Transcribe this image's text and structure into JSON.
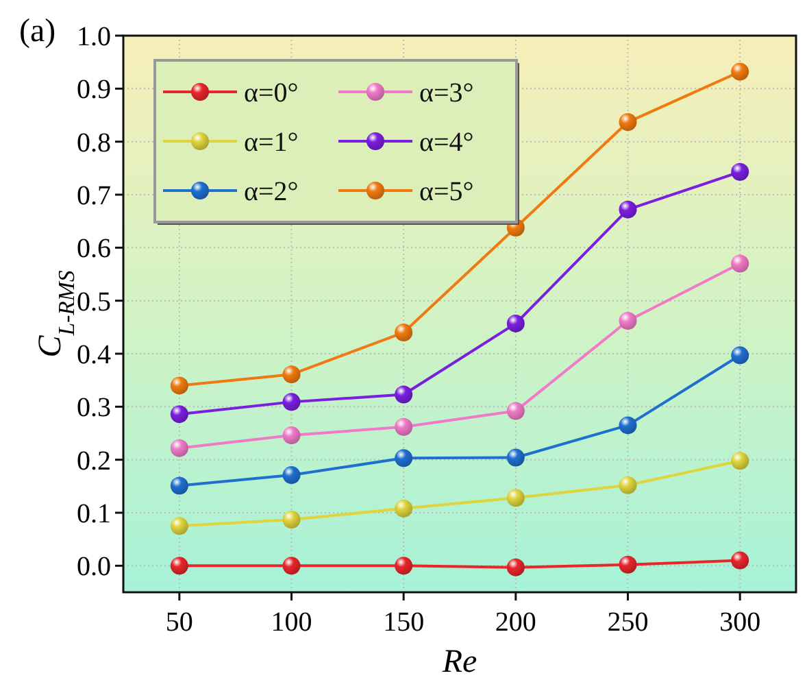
{
  "chart_data": {
    "type": "line",
    "title": "(a)",
    "xlabel": "Re",
    "ylabel": "C$_{L-RMS}$",
    "x": [
      50,
      100,
      150,
      200,
      250,
      300
    ],
    "xlim": [
      25,
      325
    ],
    "xticks": [
      50,
      100,
      150,
      200,
      250,
      300
    ],
    "ylim": [
      -0.05,
      1.0
    ],
    "yticks": [
      {
        "value": 0,
        "label": "0.0"
      },
      0.1,
      0.2,
      0.3,
      0.4,
      0.5,
      0.6,
      0.7,
      0.8,
      0.9,
      {
        "value": 1,
        "label": "1.0"
      }
    ],
    "grid": true,
    "legend": "top left",
    "marker": "circle",
    "line_style": "solid",
    "series": [
      {
        "name": "α=0°",
        "color": "#e8262b",
        "values": [
          0,
          0,
          0,
          -0.003,
          0.002,
          0.01
        ]
      },
      {
        "name": "α=1°",
        "color": "#e0d43c",
        "values": [
          0.075,
          0.087,
          0.108,
          0.128,
          0.152,
          0.198
        ]
      },
      {
        "name": "α=2°",
        "color": "#1f6fd0",
        "values": [
          0.151,
          0.171,
          0.203,
          0.204,
          0.265,
          0.397
        ]
      },
      {
        "name": "α=3°",
        "color": "#f07ac8",
        "values": [
          0.222,
          0.246,
          0.262,
          0.292,
          0.462,
          0.57
        ]
      },
      {
        "name": "α=4°",
        "color": "#7a1ee0",
        "values": [
          0.286,
          0.309,
          0.323,
          0.457,
          0.672,
          0.743
        ]
      },
      {
        "name": "α=5°",
        "color": "#f07a10",
        "values": [
          0.34,
          0.361,
          0.44,
          0.638,
          0.837,
          0.932
        ]
      }
    ]
  }
}
